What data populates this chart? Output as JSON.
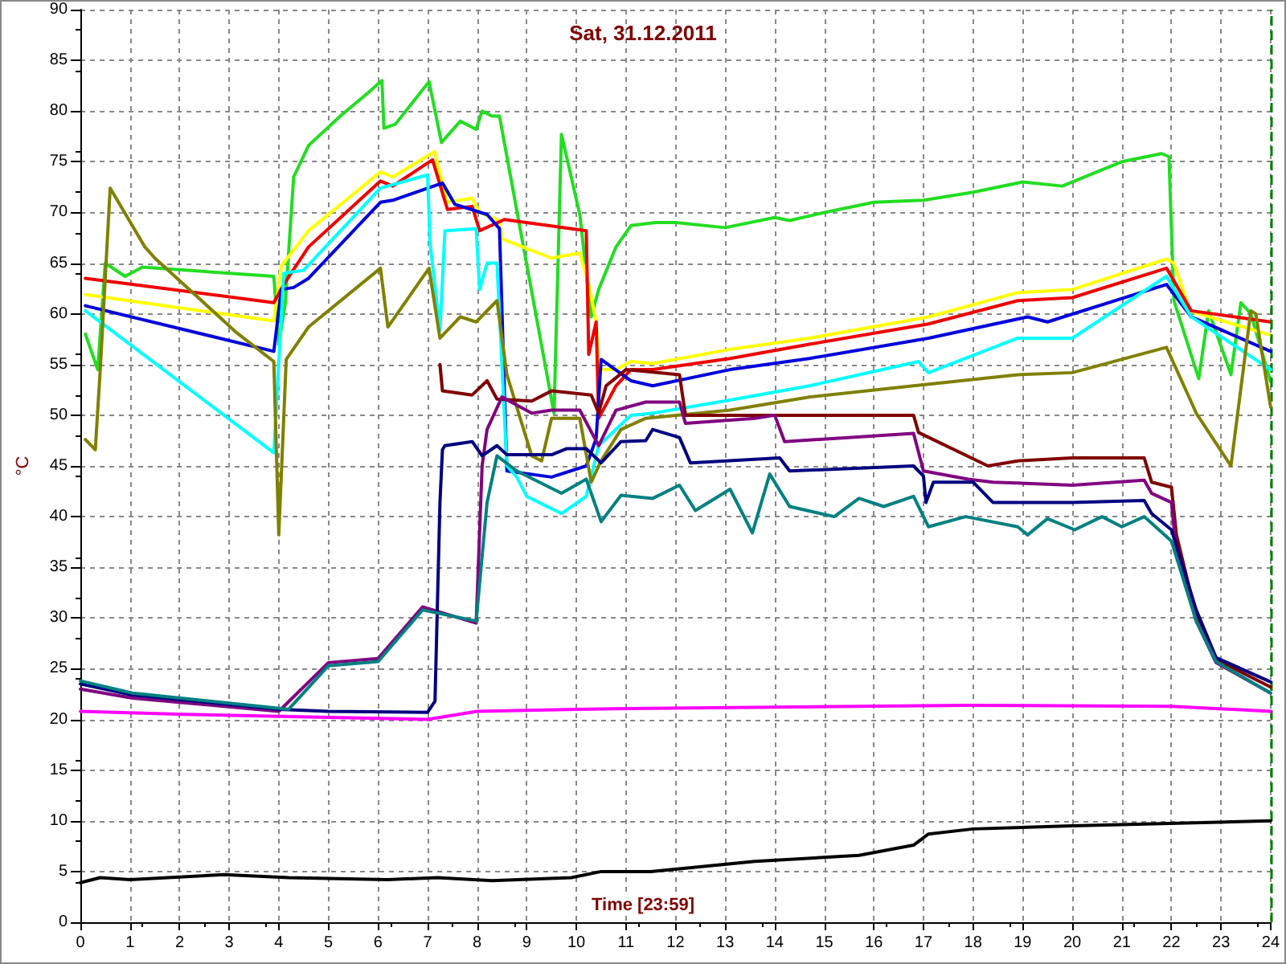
{
  "chart_data": {
    "type": "line",
    "title": "Sat, 31.12.2011",
    "xlabel": "Time [23:59]",
    "ylabel": "°C",
    "xlim": [
      0,
      24
    ],
    "xticks": [
      0,
      1,
      2,
      3,
      4,
      5,
      6,
      7,
      8,
      9,
      10,
      11,
      12,
      13,
      14,
      15,
      16,
      17,
      18,
      19,
      20,
      21,
      22,
      23,
      24
    ],
    "ylim": [
      0,
      90
    ],
    "yticks": [
      0,
      5,
      10,
      15,
      20,
      25,
      30,
      35,
      40,
      45,
      50,
      55,
      60,
      65,
      70,
      75,
      80,
      85,
      90
    ],
    "grid": true,
    "marker": "none",
    "line_style": "solid",
    "ref_lines": [
      {
        "axis": "x",
        "value": 24,
        "color": "#008000",
        "line_style": "dashed"
      }
    ],
    "series": [
      {
        "color": "#22dd22",
        "x": [
          0.1,
          0.35,
          0.5,
          0.9,
          1.25,
          3.9,
          4.0,
          4.13,
          4.3,
          4.6,
          5.24,
          5.8,
          6.08,
          6.12,
          6.35,
          7.03,
          7.28,
          7.66,
          7.98,
          8.1,
          8.3,
          8.45,
          9.55,
          9.7,
          10.07,
          10.3,
          10.45,
          10.8,
          11.1,
          11.6,
          12,
          13,
          14,
          14.3,
          15,
          16,
          17,
          18,
          19,
          19.8,
          20.5,
          21,
          21.8,
          21.95,
          22.05,
          22.55,
          22.75,
          23.2,
          23.4,
          23.6,
          24
        ],
        "values": [
          58,
          54.5,
          65,
          63.7,
          64.6,
          63.7,
          57,
          61,
          73.5,
          76.6,
          79.5,
          81.8,
          83,
          78.3,
          78.7,
          82.9,
          76.9,
          79,
          78.2,
          80,
          79.5,
          79.5,
          50.2,
          77.7,
          69.8,
          59.7,
          62.4,
          66.6,
          68.7,
          69,
          69,
          68.5,
          69.5,
          69.2,
          70,
          71,
          71.2,
          72,
          73,
          72.6,
          74,
          75,
          75.8,
          75.5,
          61.3,
          53.6,
          60.3,
          54,
          61.1,
          60,
          53.3
        ]
      },
      {
        "color": "#ffff00",
        "x": [
          0.1,
          3.9,
          4.05,
          4.6,
          6.05,
          6.3,
          7.14,
          7.4,
          7.9,
          8.05,
          8.45,
          8.5,
          9.5,
          10.07,
          10.25,
          10.4,
          10.45,
          10.8,
          11.1,
          11.54,
          13.1,
          14.7,
          17.1,
          18.9,
          20,
          21.9,
          22.05,
          22.37,
          23.1,
          24
        ],
        "values": [
          61.9,
          59.3,
          64.7,
          68.2,
          74,
          73.5,
          76,
          71,
          71.4,
          70,
          69.2,
          67.4,
          65.5,
          66,
          62.9,
          59.2,
          54.5,
          54.5,
          55.3,
          55.1,
          56.5,
          57.6,
          59.7,
          62.1,
          62.4,
          65.4,
          65,
          60.3,
          59.2,
          57.9
        ]
      },
      {
        "color": "#ee0000",
        "x": [
          0.1,
          3.9,
          4.1,
          4.6,
          6.05,
          6.3,
          7.1,
          7.4,
          7.9,
          8.05,
          8.55,
          10.2,
          10.25,
          10.4,
          10.45,
          10.8,
          11.1,
          11.54,
          13.1,
          14.7,
          17.1,
          18.9,
          20,
          21.9,
          22.4,
          24
        ],
        "values": [
          63.5,
          61.1,
          62.9,
          66.6,
          73.1,
          72.6,
          75.2,
          70.3,
          70.6,
          68.2,
          69.3,
          68.2,
          56,
          59.2,
          49.7,
          52.9,
          54.5,
          54.5,
          55.6,
          57,
          59,
          61.3,
          61.6,
          64.5,
          60.3,
          59.2
        ]
      },
      {
        "color": "#0000dd",
        "x": [
          0.1,
          3.9,
          4.05,
          4.3,
          4.6,
          6.05,
          6.3,
          7.3,
          7.55,
          8.2,
          8.45,
          8.6,
          9.5,
          10.2,
          10.4,
          10.5,
          11.1,
          11.54,
          13.1,
          14.7,
          17.1,
          19.1,
          19.5,
          21.9,
          22.4,
          24
        ],
        "values": [
          60.8,
          56.3,
          62.4,
          62.6,
          63.5,
          71,
          71.2,
          72.9,
          70.8,
          69.8,
          68.4,
          44.5,
          43.9,
          45,
          47.7,
          55.5,
          53.4,
          52.9,
          54.5,
          55.6,
          57.6,
          59.7,
          59.2,
          62.9,
          59.7,
          56.3
        ]
      },
      {
        "color": "#00ffff",
        "x": [
          0.1,
          3.9,
          4.1,
          4.5,
          6.05,
          7.0,
          7.05,
          7.25,
          7.35,
          7.98,
          8.05,
          8.2,
          8.4,
          8.6,
          8.8,
          9.0,
          9.7,
          10.2,
          10.45,
          11.1,
          11.54,
          13.1,
          14.7,
          16.9,
          17.1,
          18.9,
          20,
          21.9,
          22.4,
          24
        ],
        "values": [
          60.3,
          46.3,
          64,
          64.3,
          72.4,
          73.7,
          67,
          58.4,
          68.2,
          68.4,
          62.4,
          65,
          65,
          45,
          43.9,
          42,
          40.3,
          42,
          47,
          50,
          50.2,
          51.5,
          52.9,
          55.3,
          54.2,
          57.6,
          57.6,
          63.7,
          59.7,
          54.5
        ]
      },
      {
        "color": "#808000",
        "x": [
          0.1,
          0.3,
          0.4,
          0.6,
          1.3,
          1.5,
          3.16,
          3.9,
          4.0,
          4.15,
          4.6,
          6.05,
          6.2,
          7.03,
          7.25,
          7.66,
          7.98,
          8.4,
          8.6,
          9.1,
          9.3,
          9.5,
          10.07,
          10.3,
          10.5,
          10.9,
          11.4,
          13.1,
          14.7,
          16.8,
          18.9,
          20,
          21.9,
          22.4,
          22.5,
          23.2,
          23.6,
          23.7,
          24
        ],
        "values": [
          47.6,
          46.6,
          54.5,
          72.4,
          66.6,
          65.5,
          58.1,
          55.3,
          38.2,
          55.5,
          58.7,
          64.5,
          58.7,
          64.5,
          57.6,
          59.7,
          59.2,
          61.3,
          54,
          46,
          45.5,
          49.7,
          49.7,
          43.4,
          45.5,
          48.6,
          49.7,
          50.5,
          51.8,
          52.9,
          54,
          54.2,
          56.7,
          51.3,
          50.2,
          45,
          60.3,
          60,
          50.8
        ]
      },
      {
        "color": "#800000",
        "x": [
          7.25,
          7.3,
          7.9,
          8.2,
          8.4,
          9.1,
          9.5,
          10.3,
          10.45,
          10.6,
          11.0,
          12.08,
          12.2,
          16.8,
          16.9,
          18.3,
          18.9,
          20,
          21.45,
          21.6,
          22,
          22.1,
          22.5,
          22.9,
          24
        ],
        "values": [
          55,
          52.4,
          52,
          53.4,
          51.6,
          51.4,
          52.4,
          52,
          50.2,
          52.9,
          54.5,
          54,
          50,
          50,
          48.3,
          45,
          45.5,
          45.8,
          45.8,
          43.4,
          42.9,
          38.2,
          30.2,
          25.9,
          23.2
        ]
      },
      {
        "color": "#800080",
        "x": [
          0,
          1.05,
          4.0,
          5,
          6.0,
          6.9,
          7.98,
          8.1,
          8.2,
          8.5,
          9.1,
          9.5,
          10.07,
          10.45,
          10.8,
          11.4,
          12.08,
          12.2,
          13.6,
          14.0,
          14.2,
          16.8,
          17.0,
          17.9,
          18.4,
          20,
          21.45,
          21.6,
          22,
          22.1,
          22.5,
          22.9,
          24
        ],
        "values": [
          23,
          22.1,
          20.8,
          25.6,
          26,
          31.1,
          29.5,
          45,
          48.6,
          51.8,
          50.2,
          50.5,
          50.5,
          47,
          50.5,
          51.3,
          51.3,
          49.2,
          49.7,
          50,
          47.4,
          48.2,
          44.5,
          43.7,
          43.4,
          43.1,
          43.6,
          42.3,
          41.4,
          36.6,
          29.7,
          25.6,
          22.6
        ]
      },
      {
        "color": "#000080",
        "x": [
          0,
          1.05,
          4.0,
          5,
          7.0,
          7.15,
          7.25,
          7.3,
          7.35,
          7.9,
          8.1,
          8.4,
          8.6,
          9.5,
          9.8,
          10.2,
          10.5,
          10.9,
          11.4,
          11.54,
          12.08,
          12.3,
          14.1,
          14.3,
          16.8,
          17.0,
          17.05,
          17.2,
          18.0,
          18.4,
          20,
          21.45,
          21.6,
          22,
          22.5,
          22.9,
          24
        ],
        "values": [
          23.5,
          22.4,
          21,
          20.8,
          20.7,
          21.8,
          41.4,
          46.6,
          47,
          47.4,
          46,
          47,
          46.1,
          46.1,
          46.7,
          46.7,
          45.3,
          47.4,
          47.5,
          48.6,
          47.8,
          45.3,
          45.8,
          44.5,
          45,
          44,
          41.4,
          43.4,
          43.4,
          41.4,
          41.4,
          41.6,
          40.3,
          38.7,
          30.8,
          26.1,
          23.7
        ]
      },
      {
        "color": "#008080",
        "x": [
          0,
          1.05,
          4.2,
          5,
          6,
          6.9,
          7.98,
          8.2,
          8.4,
          8.8,
          9.7,
          10.2,
          10.5,
          10.9,
          11.54,
          12.08,
          12.4,
          13.1,
          13.55,
          13.9,
          14.3,
          15.2,
          15.7,
          16.2,
          16.8,
          17.1,
          17.85,
          18.9,
          19.1,
          19.5,
          20.05,
          20.6,
          21.0,
          21.45,
          22,
          22.5,
          22.9,
          24
        ],
        "values": [
          23.8,
          22.6,
          21,
          25.3,
          25.7,
          30.8,
          29.7,
          41.4,
          46,
          44.5,
          42.3,
          43.7,
          39.5,
          42.1,
          41.8,
          43.1,
          40.6,
          42.7,
          38.4,
          44.2,
          41,
          40,
          41.8,
          41,
          42,
          39,
          40,
          39,
          38.2,
          39.8,
          38.7,
          40,
          39,
          40,
          37.6,
          29.7,
          25.7,
          22.6
        ]
      },
      {
        "color": "#ff00ff",
        "x": [
          0,
          2.1,
          5,
          7,
          8,
          10,
          11.5,
          17.85,
          22,
          24
        ],
        "values": [
          20.8,
          20.5,
          20.2,
          20,
          20.8,
          21,
          21.1,
          21.4,
          21.3,
          20.8
        ]
      },
      {
        "color": "#000000",
        "x": [
          0,
          0.4,
          1,
          2.9,
          4.2,
          6.2,
          7.2,
          8.3,
          9.9,
          10.5,
          11.5,
          13.6,
          15.7,
          16.8,
          17.1,
          18,
          20,
          24
        ],
        "values": [
          3.9,
          4.4,
          4.2,
          4.7,
          4.4,
          4.2,
          4.4,
          4.1,
          4.4,
          5,
          5,
          6,
          6.6,
          7.6,
          8.7,
          9.2,
          9.5,
          10
        ]
      }
    ]
  }
}
